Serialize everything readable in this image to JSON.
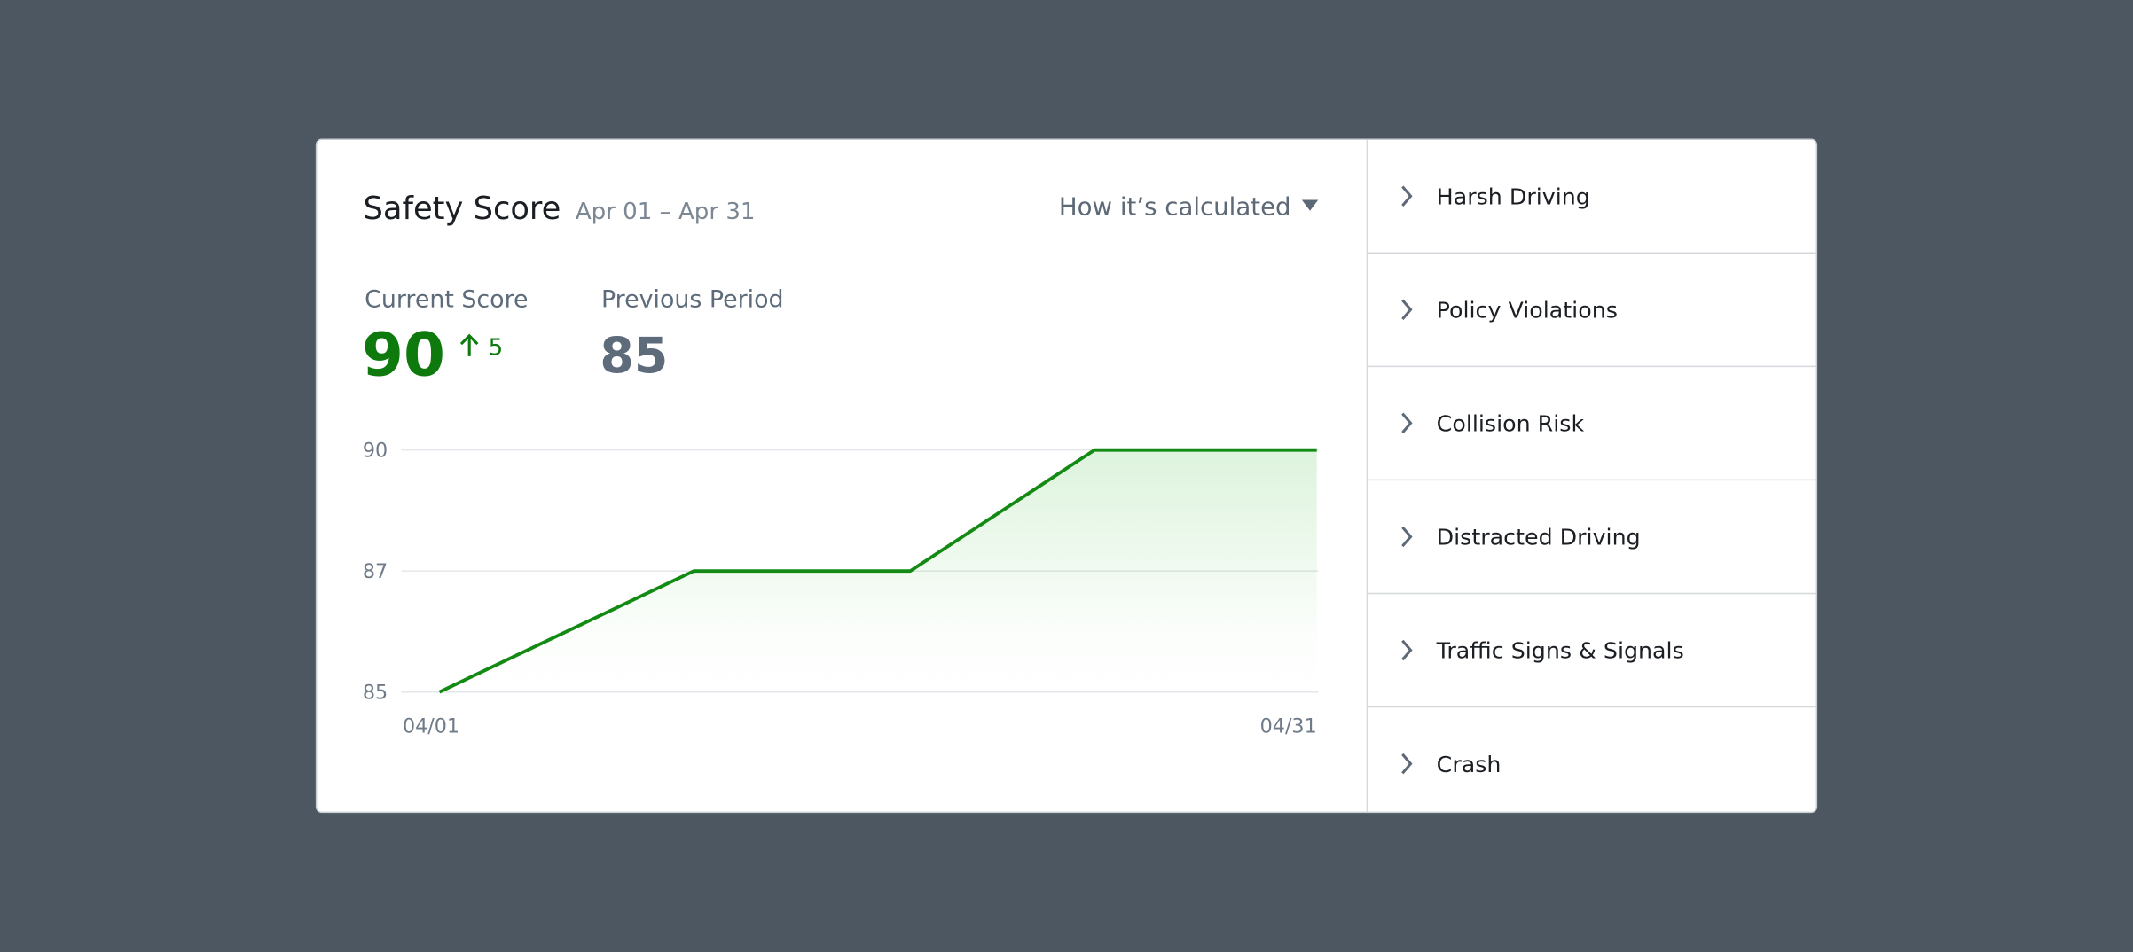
{
  "header": {
    "title": "Safety Score",
    "date_range": "Apr 01 – Apr 31",
    "calc_link": "How it’s calculated"
  },
  "current": {
    "label": "Current Score",
    "value": 90,
    "change": 5
  },
  "previous": {
    "label": "Previous Period",
    "value": 85
  },
  "chart": {
    "type": "line",
    "x": [
      1,
      9.7,
      17.1,
      23.4,
      31
    ],
    "values": [
      85,
      87,
      87,
      90,
      90
    ],
    "color": "#138a13",
    "xlim": [
      1,
      31
    ],
    "xticks": [
      {
        "value": 1,
        "label": "04/01"
      },
      {
        "value": 31,
        "label": "04/31"
      }
    ],
    "ylim": [
      85,
      90
    ],
    "yticks": [
      85,
      87,
      90
    ],
    "grid": true
  },
  "categories": [
    "Harsh Driving",
    "Policy Violations",
    "Collision Risk",
    "Distracted Driving",
    "Traffic Signs & Signals",
    "Crash"
  ]
}
